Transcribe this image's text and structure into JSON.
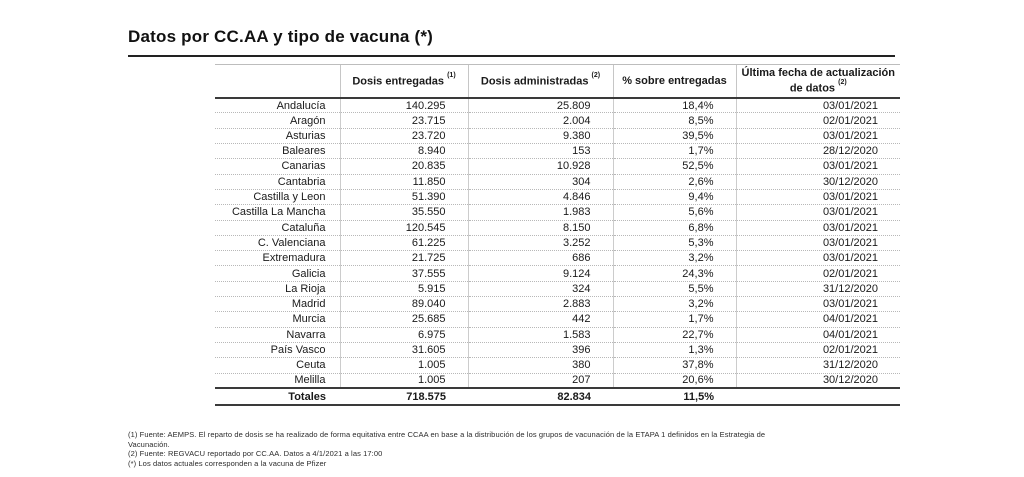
{
  "title": "Datos por CC.AA y tipo de vacuna (*)",
  "colors": {
    "text": "#1a1a1a",
    "grid_light": "#c6c6c6",
    "rule_dark": "#3a3a3a"
  },
  "table": {
    "columns": [
      {
        "lines": [
          ""
        ],
        "sup": ""
      },
      {
        "lines": [
          "Dosis entregadas"
        ],
        "sup": "(1)"
      },
      {
        "lines": [
          "Dosis administradas"
        ],
        "sup": "(2)"
      },
      {
        "lines": [
          "% sobre entregadas"
        ],
        "sup": ""
      },
      {
        "lines": [
          "Última fecha de actualización",
          "de datos"
        ],
        "sup": "(2)"
      }
    ],
    "rows": [
      [
        "Andalucía",
        "140.295",
        "25.809",
        "18,4%",
        "03/01/2021"
      ],
      [
        "Aragón",
        "23.715",
        "2.004",
        "8,5%",
        "02/01/2021"
      ],
      [
        "Asturias",
        "23.720",
        "9.380",
        "39,5%",
        "03/01/2021"
      ],
      [
        "Baleares",
        "8.940",
        "153",
        "1,7%",
        "28/12/2020"
      ],
      [
        "Canarias",
        "20.835",
        "10.928",
        "52,5%",
        "03/01/2021"
      ],
      [
        "Cantabria",
        "11.850",
        "304",
        "2,6%",
        "30/12/2020"
      ],
      [
        "Castilla y Leon",
        "51.390",
        "4.846",
        "9,4%",
        "03/01/2021"
      ],
      [
        "Castilla La Mancha",
        "35.550",
        "1.983",
        "5,6%",
        "03/01/2021"
      ],
      [
        "Cataluña",
        "120.545",
        "8.150",
        "6,8%",
        "03/01/2021"
      ],
      [
        "C. Valenciana",
        "61.225",
        "3.252",
        "5,3%",
        "03/01/2021"
      ],
      [
        "Extremadura",
        "21.725",
        "686",
        "3,2%",
        "03/01/2021"
      ],
      [
        "Galicia",
        "37.555",
        "9.124",
        "24,3%",
        "02/01/2021"
      ],
      [
        "La Rioja",
        "5.915",
        "324",
        "5,5%",
        "31/12/2020"
      ],
      [
        "Madrid",
        "89.040",
        "2.883",
        "3,2%",
        "03/01/2021"
      ],
      [
        "Murcia",
        "25.685",
        "442",
        "1,7%",
        "04/01/2021"
      ],
      [
        "Navarra",
        "6.975",
        "1.583",
        "22,7%",
        "04/01/2021"
      ],
      [
        "País Vasco",
        "31.605",
        "396",
        "1,3%",
        "02/01/2021"
      ],
      [
        "Ceuta",
        "1.005",
        "380",
        "37,8%",
        "31/12/2020"
      ],
      [
        "Melilla",
        "1.005",
        "207",
        "20,6%",
        "30/12/2020"
      ]
    ],
    "totals": [
      "Totales",
      "718.575",
      "82.834",
      "11,5%",
      ""
    ]
  },
  "footnotes": [
    "(1) Fuente: AEMPS. El reparto de dosis se ha realizado de forma equitativa entre CCAA en base a la distribución de los grupos de vacunación de la ETAPA 1 definidos en la Estrategia de Vacunación.",
    "(2) Fuente: REGVACU reportado por CC.AA. Datos a 4/1/2021 a las 17:00",
    "(*) Los datos actuales corresponden a la vacuna de Pfizer"
  ]
}
